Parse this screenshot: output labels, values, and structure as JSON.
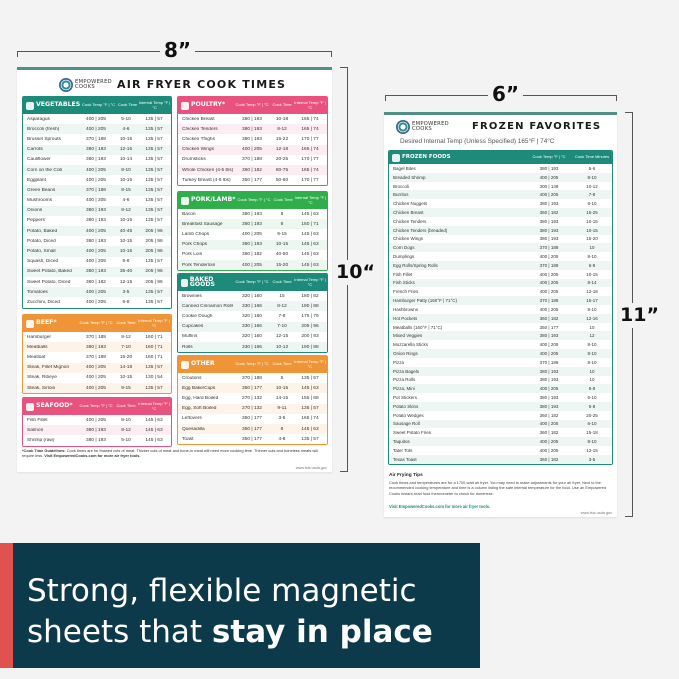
{
  "colors": {
    "teal": "#1e8a7a",
    "orange": "#ef9538",
    "pink": "#e8527f",
    "green": "#2fae4b",
    "banner": "#0d3a4b",
    "accent": "#e0524f"
  },
  "dimensions": {
    "left_width": "8”",
    "left_height": "10“",
    "right_width": "6”",
    "right_height": "11”"
  },
  "logo": {
    "line1": "EMPOWERED",
    "line2": "COOKS",
    "by": "by PINK & PEPPER"
  },
  "left_poster": {
    "title": "AIR FRYER COOK TIMES",
    "headers": [
      "Cook Temp °F | °C",
      "Cook Time",
      "Internal Temp °F | °C"
    ],
    "sections": [
      {
        "name": "VEGETABLES",
        "color": "teal",
        "rows": [
          [
            "Asparagus",
            "400 | 205",
            "5-10",
            "135 | 57"
          ],
          [
            "Broccoli (fresh)",
            "400 | 205",
            "4-6",
            "135 | 57"
          ],
          [
            "Brussel Sprouts",
            "370 | 188",
            "10-15",
            "135 | 57"
          ],
          [
            "Carrots",
            "380 | 193",
            "12-15",
            "135 | 57"
          ],
          [
            "Cauliflower",
            "380 | 193",
            "10-14",
            "135 | 57"
          ],
          [
            "Corn on the Cob",
            "400 | 205",
            "8-10",
            "135 | 57"
          ],
          [
            "Eggplant",
            "400 | 205",
            "10-15",
            "135 | 57"
          ],
          [
            "Green Beans",
            "370 | 188",
            "8-15",
            "135 | 57"
          ],
          [
            "Mushrooms",
            "400 | 205",
            "4-6",
            "135 | 57"
          ],
          [
            "Onions",
            "380 | 193",
            "8-12",
            "135 | 57"
          ],
          [
            "Peppers",
            "380 | 193",
            "10-15",
            "135 | 57"
          ],
          [
            "Potato, Baked",
            "400 | 205",
            "40-45",
            "205 | 96"
          ],
          [
            "Potato, Diced",
            "380 | 193",
            "10-15",
            "205 | 96"
          ],
          [
            "Potato, Small",
            "400 | 205",
            "10-15",
            "205 | 96"
          ],
          [
            "Squash, Diced",
            "400 | 205",
            "6-8",
            "135 | 57"
          ],
          [
            "Sweet Potato, Baked",
            "380 | 193",
            "35-40",
            "205 | 96"
          ],
          [
            "Sweet Potato, Diced",
            "360 | 182",
            "12-15",
            "205 | 96"
          ],
          [
            "Tomatoes",
            "400 | 205",
            "3-5",
            "135 | 57"
          ],
          [
            "Zucchini, Diced",
            "400 | 205",
            "6-8",
            "135 | 57"
          ]
        ]
      },
      {
        "name": "BEEF*",
        "color": "orange",
        "rows": [
          [
            "Hamburger",
            "370 | 188",
            "8-12",
            "160 | 71"
          ],
          [
            "Meatballs",
            "380 | 193",
            "7-10",
            "160 | 71"
          ],
          [
            "Meatloaf",
            "370 | 188",
            "15-20",
            "160 | 71"
          ],
          [
            "Steak, Fillet Mignon",
            "400 | 205",
            "14-18",
            "135 | 57"
          ],
          [
            "Steak, Ribeye",
            "400 | 205",
            "10-15",
            "130 | 54"
          ],
          [
            "Steak, Sirloin",
            "400 | 205",
            "9-15",
            "135 | 57"
          ]
        ]
      },
      {
        "name": "SEAFOOD*",
        "color": "pink",
        "rows": [
          [
            "Fish Fillet",
            "400 | 205",
            "8-10",
            "145 | 63"
          ],
          [
            "Salmon",
            "380 | 193",
            "8-12",
            "145 | 63"
          ],
          [
            "Shrimp (raw)",
            "380 | 193",
            "5-10",
            "145 | 63"
          ]
        ]
      },
      {
        "name": "POULTRY*",
        "color": "pink",
        "rows": [
          [
            "Chicken Breast",
            "380 | 193",
            "10-18",
            "165 | 74"
          ],
          [
            "Chicken Tenders",
            "380 | 193",
            "8-12",
            "165 | 74"
          ],
          [
            "Chicken Thighs",
            "380 | 193",
            "15-22",
            "170 | 77"
          ],
          [
            "Chicken Wings",
            "400 | 205",
            "12-18",
            "165 | 74"
          ],
          [
            "Drumsticks",
            "370 | 188",
            "20-25",
            "170 | 77"
          ],
          [
            "Whole Chicken (4-5 lbs)",
            "360 | 182",
            "60-75",
            "165 | 74"
          ],
          [
            "Turkey Breast (4-5 lbs)",
            "350 | 177",
            "50-60",
            "170 | 77"
          ]
        ]
      },
      {
        "name": "PORK/LAMB*",
        "color": "green",
        "rows": [
          [
            "Bacon",
            "380 | 193",
            "8",
            "145 | 63"
          ],
          [
            "Breakfast Sausage",
            "380 | 193",
            "8",
            "160 | 71"
          ],
          [
            "Lamb Chops",
            "400 | 205",
            "9-15",
            "145 | 63"
          ],
          [
            "Pork Chops",
            "380 | 193",
            "10-15",
            "145 | 63"
          ],
          [
            "Pork Loin",
            "360 | 182",
            "40-50",
            "145 | 63"
          ],
          [
            "Pork Tenderloin",
            "400 | 205",
            "15-20",
            "145 | 63"
          ]
        ]
      },
      {
        "name": "BAKED GOODS",
        "color": "teal",
        "rows": [
          [
            "Brownies",
            "320 | 160",
            "15",
            "180 | 82"
          ],
          [
            "Canned Cinnamon Rolls",
            "330 | 166",
            "8-12",
            "190 | 88"
          ],
          [
            "Cookie Dough",
            "320 | 160",
            "7-8",
            "175 | 79"
          ],
          [
            "Cupcakes",
            "330 | 166",
            "7-10",
            "205 | 96"
          ],
          [
            "Muffins",
            "320 | 160",
            "12-15",
            "200 | 93"
          ],
          [
            "Rolls",
            "330 | 166",
            "10-12",
            "190 | 88"
          ]
        ]
      },
      {
        "name": "OTHER",
        "color": "orange",
        "rows": [
          [
            "Croutons",
            "370 | 188",
            "5",
            "135 | 57"
          ],
          [
            "Egg Bake/Cups",
            "350 | 177",
            "10-15",
            "145 | 63"
          ],
          [
            "Egg, Hard Boiled",
            "270 | 132",
            "14-15",
            "155 | 68"
          ],
          [
            "Egg, Soft Boiled",
            "270 | 132",
            "9-11",
            "135 | 57"
          ],
          [
            "Leftovers",
            "350 | 177",
            "3-5",
            "165 | 74"
          ],
          [
            "Quesadilla",
            "350 | 177",
            "6",
            "145 | 63"
          ],
          [
            "Toast",
            "350 | 177",
            "4-8",
            "135 | 57"
          ]
        ]
      }
    ],
    "footnote_label": "*Cook Time Guidelines:",
    "footnote": " Cook times are for thawed cuts of meat. Thicker cuts of meat and bone-in meat will need more cooking time. Thinner cuts and boneless meats will require less. ",
    "footnote_visit": "Visit EmpoweredCooks.com for more air fryer tools.",
    "url": "www.fsis.usda.gov"
  },
  "right_poster": {
    "title": "FROZEN FAVORITES",
    "subtitle": "Desired Internal Temp (Unless Specified) 165°F | 74°C",
    "section": "FROZEN FOODS",
    "headers": [
      "Cook Temp °F | °C",
      "Cook Time Minutes"
    ],
    "rows": [
      [
        "Bagel Bites",
        "380 | 193",
        "5-6"
      ],
      [
        "Breaded Shrimp",
        "400 | 205",
        "8-10"
      ],
      [
        "Broccoli",
        "300 | 149",
        "10-12"
      ],
      [
        "Burritos",
        "400 | 205",
        "7-8"
      ],
      [
        "Chicken Nuggets",
        "380 | 193",
        "8-10"
      ],
      [
        "Chicken Breast",
        "360 | 182",
        "15-25"
      ],
      [
        "Chicken Tenders",
        "380 | 193",
        "10-15"
      ],
      [
        "Chicken Tenders (breaded)",
        "380 | 193",
        "10-15"
      ],
      [
        "Chicken Wings",
        "380 | 193",
        "15-20"
      ],
      [
        "Corn Dogs",
        "370 | 188",
        "10"
      ],
      [
        "Dumplings",
        "400 | 205",
        "8-10"
      ],
      [
        "Egg Rolls/Spring Rolls",
        "370 | 188",
        "6-8"
      ],
      [
        "Fish Fillet",
        "400 | 205",
        "10-15"
      ],
      [
        "Fish Sticks",
        "400 | 205",
        "8-14"
      ],
      [
        "French Fries",
        "400 | 205",
        "12-18"
      ],
      [
        "Hamburger Patty (160°F | 71°C)",
        "370 | 188",
        "15-17"
      ],
      [
        "Hashbrowns",
        "400 | 205",
        "8-10"
      ],
      [
        "Hot Pockets",
        "360 | 182",
        "12-16"
      ],
      [
        "Meatballs (160°F | 71°C)",
        "350 | 177",
        "10"
      ],
      [
        "Mixed Veggies",
        "380 | 193",
        "12"
      ],
      [
        "Mozzarella Sticks",
        "400 | 205",
        "8-10"
      ],
      [
        "Onion Rings",
        "400 | 205",
        "8-10"
      ],
      [
        "Pizza",
        "370 | 188",
        "8-10"
      ],
      [
        "Pizza Bagels",
        "380 | 193",
        "10"
      ],
      [
        "Pizza Rolls",
        "380 | 193",
        "10"
      ],
      [
        "Pizza, Mini",
        "400 | 205",
        "6-8"
      ],
      [
        "Pot Stickers",
        "380 | 193",
        "6-10"
      ],
      [
        "Potato Skins",
        "380 | 193",
        "5-8"
      ],
      [
        "Potato Wedges",
        "360 | 182",
        "20-25"
      ],
      [
        "Sausage Roll",
        "400 | 205",
        "6-10"
      ],
      [
        "Sweet Potato Fries",
        "360 | 182",
        "15-18"
      ],
      [
        "Taquitos",
        "400 | 205",
        "8-10"
      ],
      [
        "Tater Tots",
        "400 | 205",
        "12-15"
      ],
      [
        "Texas Toast",
        "360 | 182",
        "3-5"
      ]
    ],
    "tips_title": "Air Frying Tips",
    "tips": "Cook times and temperatures are for a 1700-watt air fryer. You may need to make adjustments for your air fryer. Next to the recommended cooking temperature and time is a column listing the safe internal temperature for the food. Use an Empowered Cooks instant-read food thermometer to check for doneness.",
    "visit": "Visit EmpoweredCooks.com for more air fryer tools.",
    "url": "www.fsis.usda.gov"
  },
  "banner": {
    "line1": "Strong, flexible magnetic",
    "line2_regular": "sheets that ",
    "line2_bold": "stay in place"
  }
}
